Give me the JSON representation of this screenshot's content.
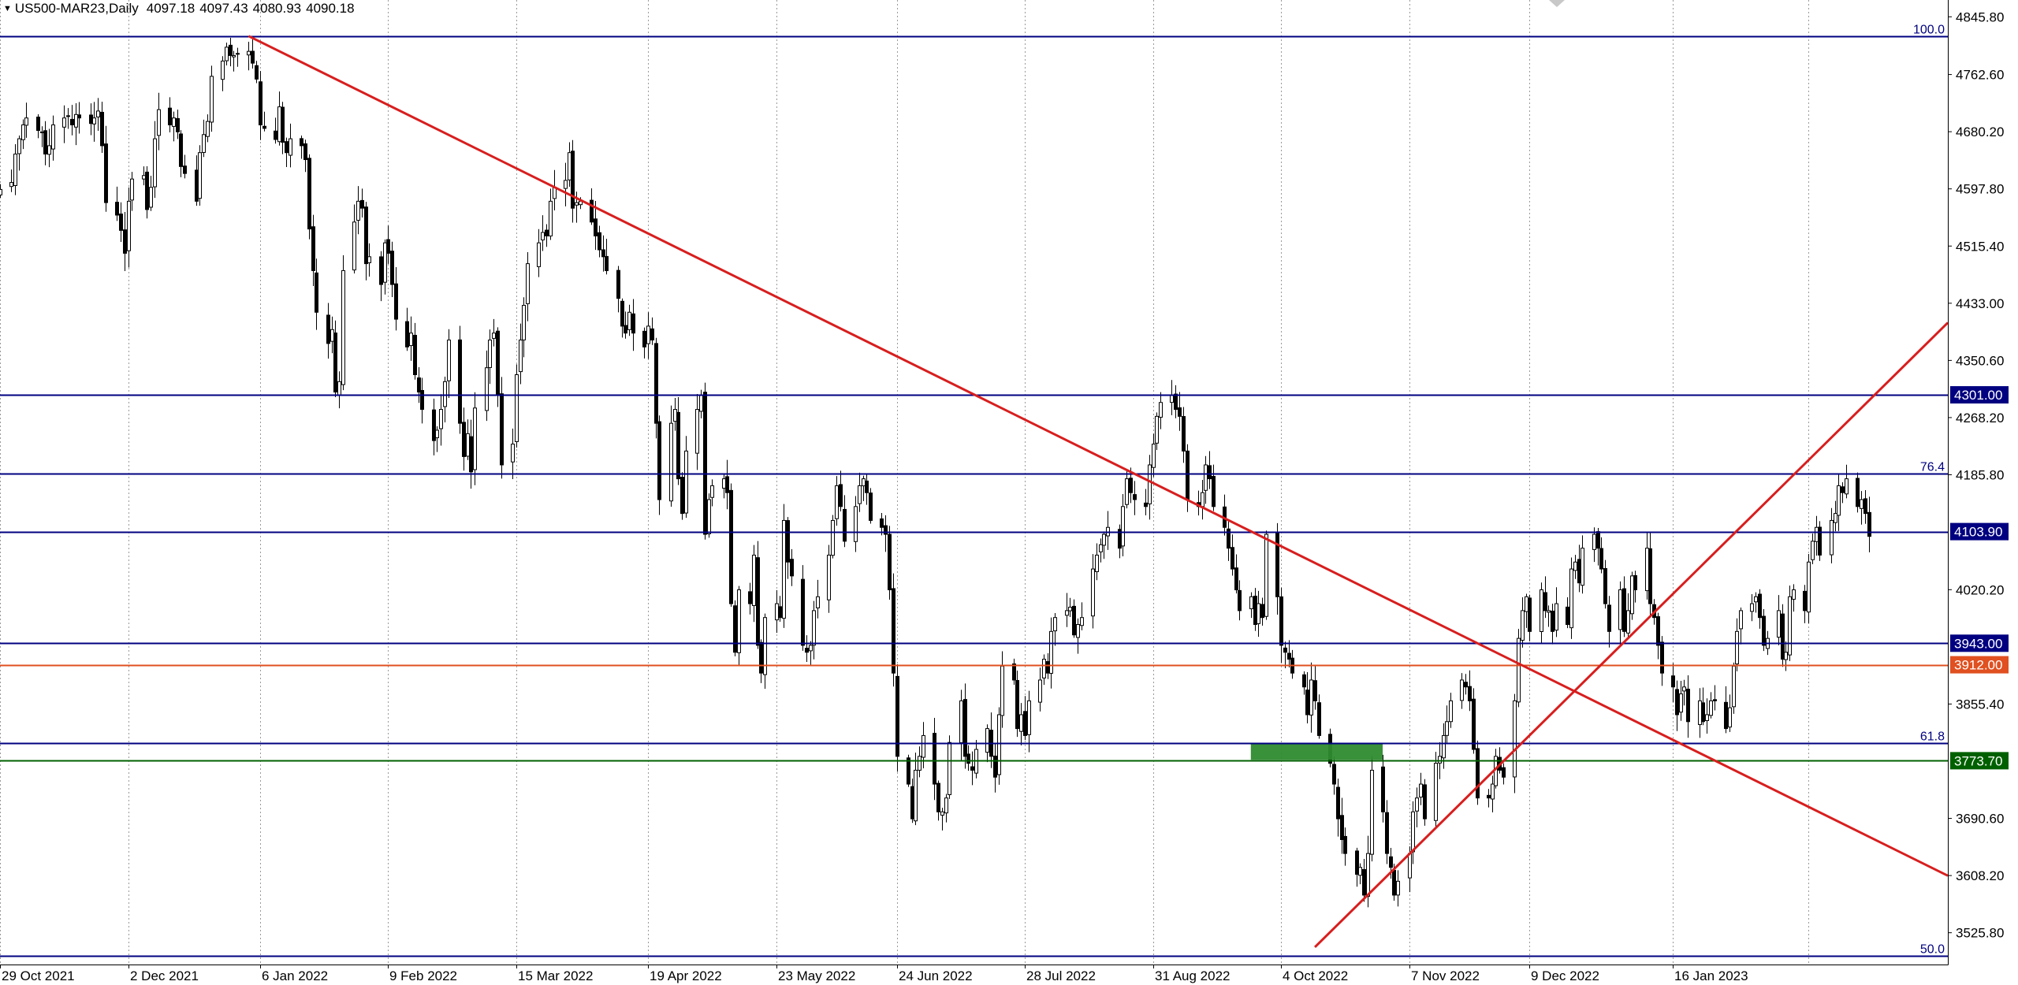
{
  "chart_data": {
    "type": "candlestick",
    "symbol": "US500-MAR23",
    "timeframe": "Daily",
    "ohlc_readout": {
      "open": "4097.18",
      "high": "4097.43",
      "low": "4080.93",
      "close": "4090.18"
    },
    "y_axis": {
      "range": [
        3480,
        4870
      ],
      "ticks": [
        "4845.80",
        "4762.60",
        "4680.20",
        "4597.80",
        "4515.40",
        "4433.00",
        "4350.60",
        "4268.20",
        "4185.80",
        "4103.90",
        "4020.20",
        "3855.40",
        "3690.60",
        "3608.20",
        "3525.80"
      ]
    },
    "x_axis": {
      "range": [
        "2021-10-29",
        "2023-03-30"
      ],
      "ticks": [
        {
          "date": "2021-10-29",
          "label": "29 Oct 2021"
        },
        {
          "date": "2021-12-02",
          "label": "2 Dec 2021"
        },
        {
          "date": "2022-01-06",
          "label": "6 Jan 2022"
        },
        {
          "date": "2022-02-09",
          "label": "9 Feb 2022"
        },
        {
          "date": "2022-03-15",
          "label": "15 Mar 2022"
        },
        {
          "date": "2022-04-19",
          "label": "19 Apr 2022"
        },
        {
          "date": "2022-05-23",
          "label": "23 May 2022"
        },
        {
          "date": "2022-06-24",
          "label": "24 Jun 2022"
        },
        {
          "date": "2022-07-28",
          "label": "28 Jul 2022"
        },
        {
          "date": "2022-08-31",
          "label": "31 Aug 2022"
        },
        {
          "date": "2022-10-04",
          "label": "4 Oct 2022"
        },
        {
          "date": "2022-11-07",
          "label": "7 Nov 2022"
        },
        {
          "date": "2022-12-09",
          "label": "9 Dec 2022"
        },
        {
          "date": "2023-01-16",
          "label": "16 Jan 2023"
        }
      ]
    },
    "horizontal_levels": [
      {
        "price": 4818,
        "label": "100.0",
        "label_style": "text",
        "color": "#000080"
      },
      {
        "price": 4301,
        "label": "4301.00",
        "label_style": "box",
        "color": "#000080"
      },
      {
        "price": 4188,
        "label": "76.4",
        "label_style": "text",
        "color": "#000080"
      },
      {
        "price": 4103.9,
        "label": "4103.90",
        "label_style": "box",
        "color": "#000080"
      },
      {
        "price": 3943,
        "label": "3943.00",
        "label_style": "box",
        "color": "#000080"
      },
      {
        "price": 3912,
        "label": "3912.00",
        "label_style": "box",
        "color": "#e05020"
      },
      {
        "price": 3799,
        "label": "61.8",
        "label_style": "text",
        "color": "#000080"
      },
      {
        "price": 3773.7,
        "label": "3773.70",
        "label_style": "box",
        "color": "#006000"
      },
      {
        "price": 3492,
        "label": "50.0",
        "label_style": "text",
        "color": "#000080"
      }
    ],
    "trendlines": [
      {
        "from": {
          "date": "2022-01-03",
          "price": 4818
        },
        "to": {
          "date": "2023-03-30",
          "price": 3608
        },
        "color": "#d81e1e"
      },
      {
        "from": {
          "date": "2022-10-13",
          "price": 3505
        },
        "to": {
          "date": "2023-03-30",
          "price": 4405
        },
        "color": "#d81e1e"
      }
    ],
    "zone": {
      "from_date": "2022-09-26",
      "to_date": "2022-10-31",
      "price_high": 3798,
      "price_low": 3775,
      "color": "#2e8b2e"
    },
    "series": {
      "dates_start": "2021-10-29",
      "closes": [
        4597,
        4607,
        4648,
        4670,
        4690,
        4700,
        4682,
        4680,
        4648,
        4660,
        4690,
        4700,
        4703,
        4690,
        4705,
        4700,
        4692,
        4700,
        4710,
        4660,
        4578,
        4560,
        4538,
        4505,
        4580,
        4612,
        4617,
        4568,
        4600,
        4670,
        4712,
        4690,
        4700,
        4680,
        4630,
        4620,
        4580,
        4650,
        4676,
        4695,
        4760,
        4782,
        4802,
        4790,
        4790,
        4793,
        4796,
        4779,
        4756,
        4690,
        4685,
        4669,
        4716,
        4665,
        4650,
        4670,
        4660,
        4640,
        4540,
        4480,
        4420,
        4375,
        4395,
        4305,
        4320,
        4480,
        4550,
        4580,
        4570,
        4490,
        4500,
        4460,
        4520,
        4505,
        4460,
        4410,
        4370,
        4390,
        4330,
        4305,
        4280,
        4235,
        4250,
        4280,
        4320,
        4380,
        4260,
        4212,
        4245,
        4190,
        4282,
        4340,
        4380,
        4390,
        4300,
        4200,
        4230,
        4330,
        4380,
        4430,
        4490,
        4520,
        4535,
        4530,
        4580,
        4600,
        4610,
        4650,
        4570,
        4578,
        4580,
        4550,
        4530,
        4510,
        4500,
        4480,
        4440,
        4400,
        4390,
        4420,
        4390,
        4370,
        4400,
        4380,
        4260,
        4150,
        4260,
        4280,
        4180,
        4130,
        4220,
        4280,
        4300,
        4100,
        4150,
        4170,
        4180,
        4160,
        4000,
        3930,
        4020,
        4000,
        4070,
        3940,
        3900,
        3980,
        4000,
        3980,
        4120,
        4060,
        4040,
        3940,
        3930,
        3940,
        3990,
        4010,
        4070,
        4120,
        4170,
        4140,
        4090,
        4140,
        4170,
        4180,
        4160,
        4120,
        4110,
        4100,
        4020,
        3900,
        3780,
        3740,
        3690,
        3760,
        3780,
        3810,
        3740,
        3700,
        3700,
        3720,
        3800,
        3860,
        3780,
        3770,
        3760,
        3790,
        3820,
        3780,
        3750,
        3840,
        3910,
        3890,
        3820,
        3840,
        3810,
        3860,
        3890,
        3920,
        3900,
        3960,
        3980,
        3990,
        3995,
        3955,
        3970,
        3980,
        4050,
        4070,
        4085,
        4100,
        4110,
        4080,
        4140,
        4180,
        4160,
        4150,
        4140,
        4200,
        4230,
        4270,
        4290,
        4300,
        4280,
        4270,
        4220,
        4150,
        4140,
        4160,
        4200,
        4180,
        4140,
        4110,
        4080,
        4050,
        4020,
        3990,
        4010,
        3970,
        4000,
        3980,
        4100,
        4010,
        3940,
        3930,
        3920,
        3900,
        3880,
        3840,
        3890,
        3860,
        3810,
        3770,
        3740,
        3690,
        3660,
        3640,
        3610,
        3620,
        3580,
        3640,
        3760,
        3700,
        3640,
        3620,
        3580,
        3600,
        3640,
        3700,
        3720,
        3740,
        3690,
        3770,
        3780,
        3810,
        3830,
        3860,
        3890,
        3880,
        3860,
        3790,
        3720,
        3720,
        3740,
        3780,
        3760,
        3750,
        3860,
        3950,
        3990,
        4010,
        3960,
        4020,
        3990,
        3990,
        3960,
        4000,
        3970,
        4050,
        4060,
        4030,
        4080,
        4100,
        4080,
        4050,
        4000,
        3960,
        4020,
        3960,
        3990,
        4040,
        4020,
        4080,
        4000,
        3980,
        3940,
        3900,
        3880,
        3840,
        3870,
        3880,
        3830,
        3860,
        3830,
        3840,
        3860,
        3860,
        3820,
        3850,
        3910,
        3960,
        3990,
        4000,
        4010,
        3980,
        3940,
        3950,
        3990,
        3920,
        3930,
        4010,
        4020,
        3990,
        4060,
        4090,
        4110,
        4070,
        4120,
        4130,
        4170,
        4160,
        4180,
        4140,
        4150,
        4130,
        4097
      ]
    }
  }
}
